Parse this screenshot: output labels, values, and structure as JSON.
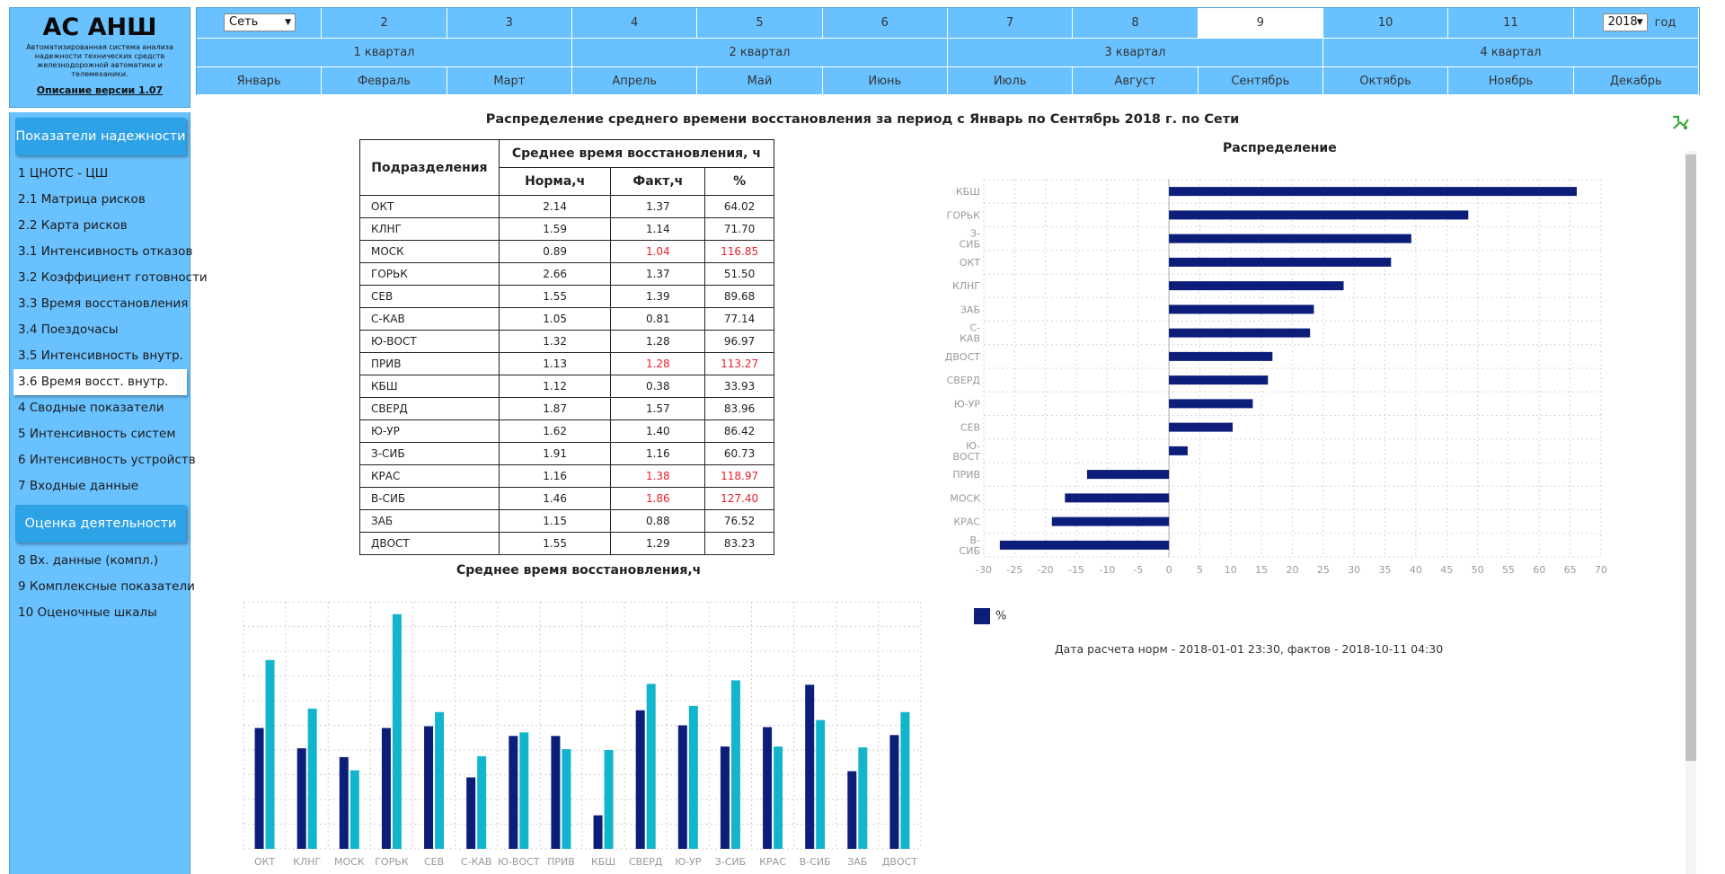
{
  "app": {
    "title": "АС АНШ",
    "subtitle": "Автоматизированная система анализа надежности технических средств железнодорожной автоматики и телемеханики.",
    "version_link": "Описание версии 1.07"
  },
  "sidebar": {
    "section1_title": "Показатели надежности",
    "section1_items": [
      "1 ЦНОТС - ЦШ",
      "2.1 Матрица рисков",
      "2.2 Карта рисков",
      "3.1 Интенсивность отказов",
      "3.2 Коэффициент готовности",
      "3.3 Время восстановления",
      "3.4 Поездочасы",
      "3.5 Интенсивность внутр.",
      "3.6 Время восст. внутр.",
      "4 Сводные показатели",
      "5 Интенсивность систем",
      "6 Интенсивность устройств",
      "7 Входные данные"
    ],
    "active_index": 8,
    "section2_title": "Оценка деятельности",
    "section2_items": [
      "8 Вх. данные (компл.)",
      "9 Комплексные показатели",
      "10 Оценочные шкалы"
    ]
  },
  "topbar": {
    "network_select": "Сеть",
    "periods": [
      "2",
      "3",
      "4",
      "5",
      "6",
      "7",
      "8",
      "9",
      "10",
      "11"
    ],
    "selected_period": "9",
    "year_select": "2018",
    "year_label": "год",
    "quarters": [
      "1 квартал",
      "2 квартал",
      "3 квартал",
      "4 квартал"
    ],
    "months": [
      "Январь",
      "Февраль",
      "Март",
      "Апрель",
      "Май",
      "Июнь",
      "Июль",
      "Август",
      "Сентябрь",
      "Октябрь",
      "Ноябрь",
      "Декабрь"
    ]
  },
  "main": {
    "title": "Распределение среднего времени восстановления за период с Январь по Сентябрь 2018 г. по Сети",
    "table": {
      "col_unit": "Подразделения",
      "col_group": "Среднее время восстановления, ч",
      "col_norm": "Норма,ч",
      "col_fact": "Факт,ч",
      "col_pct": "%",
      "rows": [
        {
          "name": "ОКТ",
          "norm": "2.14",
          "fact": "1.37",
          "pct": "64.02",
          "over": false
        },
        {
          "name": "КЛНГ",
          "norm": "1.59",
          "fact": "1.14",
          "pct": "71.70",
          "over": false
        },
        {
          "name": "МОСК",
          "norm": "0.89",
          "fact": "1.04",
          "pct": "116.85",
          "over": true
        },
        {
          "name": "ГОРЬК",
          "norm": "2.66",
          "fact": "1.37",
          "pct": "51.50",
          "over": false
        },
        {
          "name": "СЕВ",
          "norm": "1.55",
          "fact": "1.39",
          "pct": "89.68",
          "over": false
        },
        {
          "name": "С-КАВ",
          "norm": "1.05",
          "fact": "0.81",
          "pct": "77.14",
          "over": false
        },
        {
          "name": "Ю-ВОСТ",
          "norm": "1.32",
          "fact": "1.28",
          "pct": "96.97",
          "over": false
        },
        {
          "name": "ПРИВ",
          "norm": "1.13",
          "fact": "1.28",
          "pct": "113.27",
          "over": true
        },
        {
          "name": "КБШ",
          "norm": "1.12",
          "fact": "0.38",
          "pct": "33.93",
          "over": false
        },
        {
          "name": "СВЕРД",
          "norm": "1.87",
          "fact": "1.57",
          "pct": "83.96",
          "over": false
        },
        {
          "name": "Ю-УР",
          "norm": "1.62",
          "fact": "1.40",
          "pct": "86.42",
          "over": false
        },
        {
          "name": "З-СИБ",
          "norm": "1.91",
          "fact": "1.16",
          "pct": "60.73",
          "over": false
        },
        {
          "name": "КРАС",
          "norm": "1.16",
          "fact": "1.38",
          "pct": "118.97",
          "over": true
        },
        {
          "name": "В-СИБ",
          "norm": "1.46",
          "fact": "1.86",
          "pct": "127.40",
          "over": true
        },
        {
          "name": "ЗАБ",
          "norm": "1.15",
          "fact": "0.88",
          "pct": "76.52",
          "over": false
        },
        {
          "name": "ДВОСТ",
          "norm": "1.55",
          "fact": "1.29",
          "pct": "83.23",
          "over": false
        }
      ]
    },
    "footer_note": "Дата расчета норм - 2018-01-01 23:30,    фактов - 2018-10-11 04:30"
  },
  "colors": {
    "sidebar_bg": "#69c2ff",
    "header_blue": "#2ea2e6",
    "navy": "#0d1d7a",
    "teal": "#12b5cb",
    "over_red": "#e8202a"
  },
  "chart_data": [
    {
      "type": "bar",
      "title": "Среднее время восстановления,ч",
      "categories": [
        "ОКТ",
        "КЛНГ",
        "МОСК",
        "ГОРЬК",
        "СЕВ",
        "С-КАВ",
        "Ю-ВОСТ",
        "ПРИВ",
        "КБШ",
        "СВЕРД",
        "Ю-УР",
        "З-СИБ",
        "КРАС",
        "В-СИБ",
        "ЗАБ",
        "ДВОСТ"
      ],
      "series": [
        {
          "values": [
            1.37,
            1.14,
            1.04,
            1.37,
            1.39,
            0.81,
            1.28,
            1.28,
            0.38,
            1.57,
            1.4,
            1.16,
            1.38,
            1.86,
            0.88,
            1.29
          ]
        },
        {
          "values": [
            2.14,
            1.59,
            0.89,
            2.66,
            1.55,
            1.05,
            1.32,
            1.13,
            1.12,
            1.87,
            1.62,
            1.91,
            1.16,
            1.46,
            1.15,
            1.55
          ]
        }
      ],
      "ylim": [
        0,
        2.8
      ],
      "colors": [
        "#0d1d7a",
        "#12b5cb"
      ]
    },
    {
      "type": "bar",
      "orientation": "horizontal",
      "title": "Распределение",
      "categories": [
        "КБШ",
        "ГОРЬК",
        "З-СИБ",
        "ОКТ",
        "КЛНГ",
        "ЗАБ",
        "С-КАВ",
        "ДВОСТ",
        "СВЕРД",
        "Ю-УР",
        "СЕВ",
        "Ю-ВОСТ",
        "ПРИВ",
        "МОСК",
        "КРАС",
        "В-СИБ"
      ],
      "series": [
        {
          "name": "%",
          "values": [
            66.07,
            48.5,
            39.27,
            35.98,
            28.3,
            23.48,
            22.86,
            16.77,
            16.04,
            13.58,
            10.32,
            3.03,
            -13.27,
            -16.85,
            -18.97,
            -27.4
          ]
        }
      ],
      "xlim": [
        -30,
        70
      ],
      "xticks": [
        -30,
        -25,
        -20,
        -15,
        -10,
        -5,
        0,
        5,
        10,
        15,
        20,
        25,
        30,
        35,
        40,
        45,
        50,
        55,
        60,
        65,
        70
      ],
      "legend": "bottom-left"
    }
  ]
}
